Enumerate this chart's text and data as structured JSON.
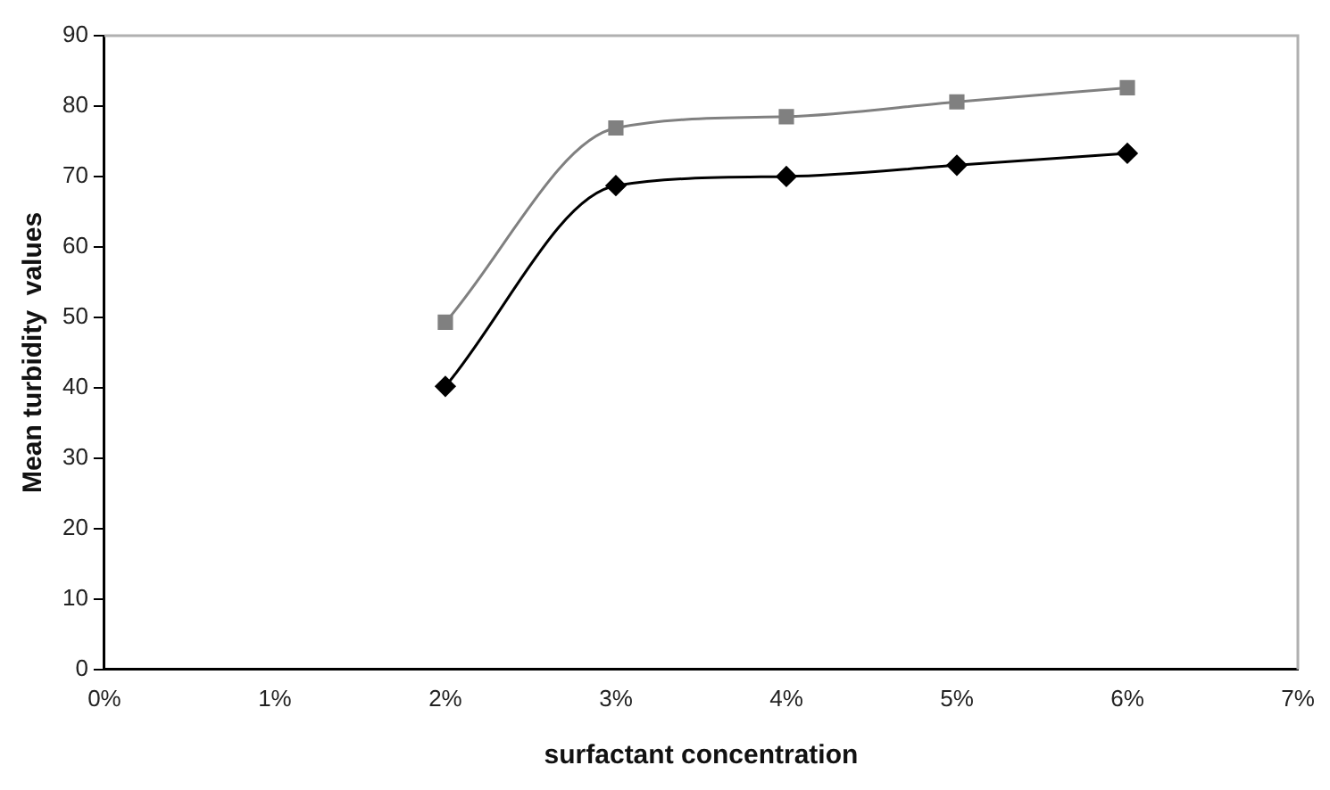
{
  "chart_data": {
    "type": "line",
    "xlabel": "surfactant concentration",
    "ylabel": "Mean turbidity  values",
    "x": [
      2,
      3,
      4,
      5,
      6
    ],
    "series": [
      {
        "color": "#808080",
        "marker": "square",
        "values": [
          49.3,
          76.9,
          78.5,
          80.6,
          82.6
        ]
      },
      {
        "color": "#000000",
        "marker": "diamond",
        "values": [
          40.2,
          68.7,
          70,
          71.6,
          73.3
        ]
      }
    ],
    "xlim": [
      0,
      7
    ],
    "xticks": [
      {
        "value": 0,
        "label": "0%"
      },
      {
        "value": 1,
        "label": "1%"
      },
      {
        "value": 2,
        "label": "2%"
      },
      {
        "value": 3,
        "label": "3%"
      },
      {
        "value": 4,
        "label": "4%"
      },
      {
        "value": 5,
        "label": "5%"
      },
      {
        "value": 6,
        "label": "6%"
      },
      {
        "value": 7,
        "label": "7%"
      }
    ],
    "ylim": [
      0,
      90
    ],
    "yticks": [
      0,
      10,
      20,
      30,
      40,
      50,
      60,
      70,
      80,
      90
    ],
    "grid": false,
    "legend": false
  }
}
